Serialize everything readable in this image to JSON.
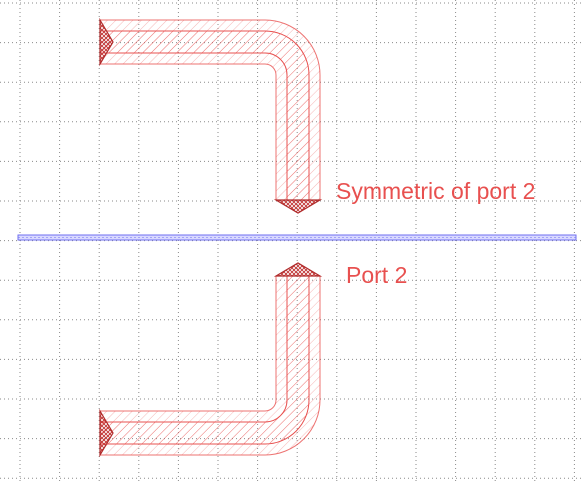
{
  "labels": {
    "symmetric_port": "Symmetric of port 2",
    "port": "Port 2"
  },
  "colors": {
    "trace": "#e8504f",
    "label": "#e8504f",
    "symmetry_line": "#6f6ff0",
    "grid": "#8a8a8a",
    "background": "#ffffff"
  },
  "icons": [
    "port-arrow-icon",
    "port-terminal-icon"
  ]
}
